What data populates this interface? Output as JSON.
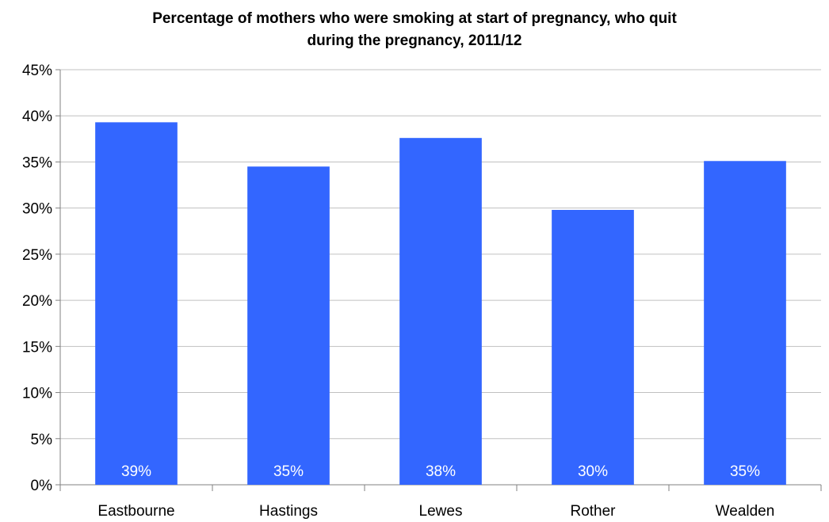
{
  "chart_data": {
    "type": "bar",
    "title_lines": [
      "Percentage of mothers who were smoking at start of pregnancy, who quit",
      "during the pregnancy, 2011/12"
    ],
    "categories": [
      "Eastbourne",
      "Hastings",
      "Lewes",
      "Rother",
      "Wealden"
    ],
    "values": [
      39.3,
      34.5,
      37.6,
      29.8,
      35.1
    ],
    "data_labels": [
      "39%",
      "35%",
      "38%",
      "30%",
      "35%"
    ],
    "ylim": [
      0,
      45
    ],
    "yticks": [
      0,
      5,
      10,
      15,
      20,
      25,
      30,
      35,
      40,
      45
    ],
    "ytick_labels": [
      "0%",
      "5%",
      "10%",
      "15%",
      "20%",
      "25%",
      "30%",
      "35%",
      "40%",
      "45%"
    ],
    "xlabel": "",
    "ylabel": "",
    "grid": true,
    "bar_color": "#3366FF",
    "grid_color": "#C0C0C0",
    "axis_color": "#808080"
  }
}
